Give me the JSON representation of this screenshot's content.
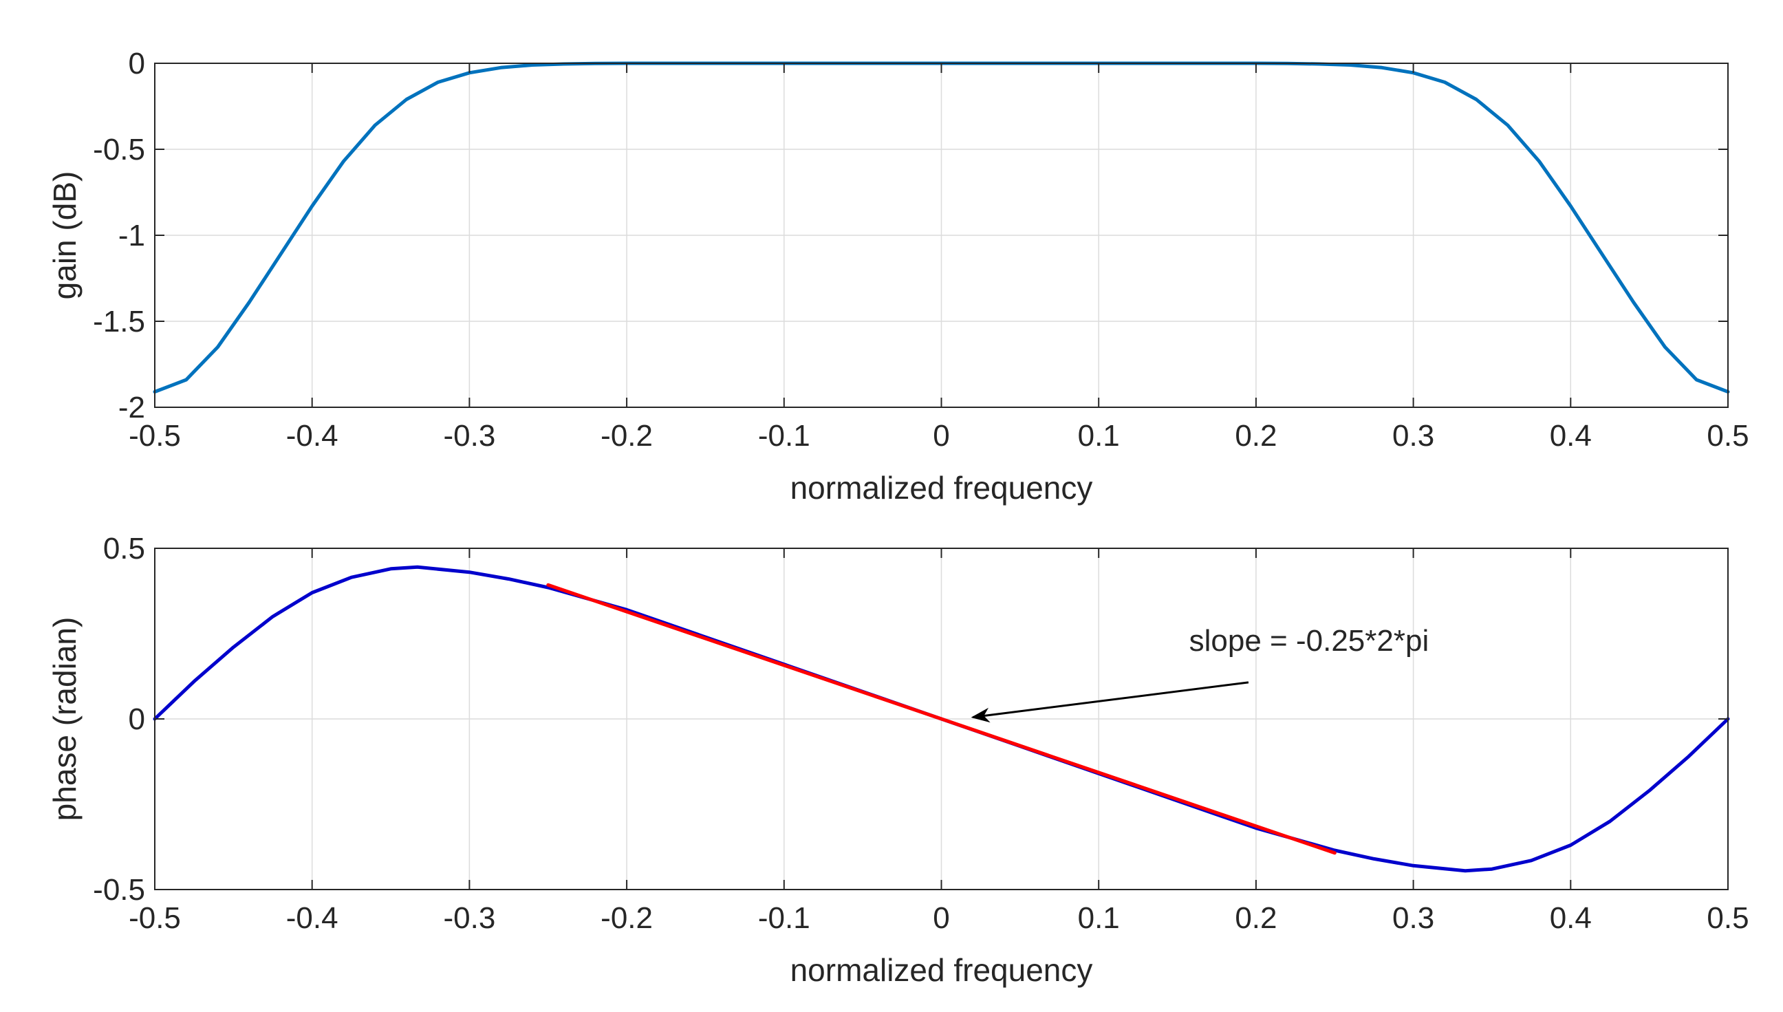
{
  "chart_data": [
    {
      "type": "line",
      "xlabel": "normalized frequency",
      "ylabel": "gain (dB)",
      "xlim": [
        -0.5,
        0.5
      ],
      "ylim": [
        -2,
        0
      ],
      "xticks": [
        "-0.5",
        "-0.4",
        "-0.3",
        "-0.2",
        "-0.1",
        "0",
        "0.1",
        "0.2",
        "0.3",
        "0.4",
        "0.5"
      ],
      "yticks": [
        "0",
        "-0.5",
        "-1",
        "-1.5",
        "-2"
      ],
      "grid": true,
      "series": [
        {
          "name": "gain",
          "color": "#0072BD",
          "x": [
            -0.5,
            -0.48,
            -0.46,
            -0.44,
            -0.42,
            -0.4,
            -0.38,
            -0.36,
            -0.34,
            -0.32,
            -0.3,
            -0.28,
            -0.26,
            -0.24,
            -0.22,
            -0.2,
            -0.1,
            0,
            0.1,
            0.2,
            0.22,
            0.24,
            0.26,
            0.28,
            0.3,
            0.32,
            0.34,
            0.36,
            0.38,
            0.4,
            0.42,
            0.44,
            0.46,
            0.48,
            0.5
          ],
          "y": [
            -1.91,
            -1.84,
            -1.65,
            -1.39,
            -1.11,
            -0.83,
            -0.57,
            -0.36,
            -0.21,
            -0.11,
            -0.055,
            -0.025,
            -0.01,
            -0.004,
            -0.001,
            0,
            0,
            0,
            0,
            0,
            -0.001,
            -0.004,
            -0.01,
            -0.025,
            -0.055,
            -0.11,
            -0.21,
            -0.36,
            -0.57,
            -0.83,
            -1.11,
            -1.39,
            -1.65,
            -1.84,
            -1.91
          ]
        }
      ]
    },
    {
      "type": "line",
      "xlabel": "normalized frequency",
      "ylabel": "phase (radian)",
      "xlim": [
        -0.5,
        0.5
      ],
      "ylim": [
        -0.5,
        0.5
      ],
      "xticks": [
        "-0.5",
        "-0.4",
        "-0.3",
        "-0.2",
        "-0.1",
        "0",
        "0.1",
        "0.2",
        "0.3",
        "0.4",
        "0.5"
      ],
      "yticks": [
        "0.5",
        "0",
        "-0.5"
      ],
      "grid": true,
      "series": [
        {
          "name": "phase",
          "color": "#0000CC",
          "x": [
            -0.5,
            -0.475,
            -0.45,
            -0.425,
            -0.4,
            -0.375,
            -0.35,
            -0.333,
            -0.3,
            -0.275,
            -0.25,
            -0.2,
            -0.15,
            -0.1,
            -0.05,
            0,
            0.05,
            0.1,
            0.15,
            0.2,
            0.25,
            0.275,
            0.3,
            0.333,
            0.35,
            0.375,
            0.4,
            0.425,
            0.45,
            0.475,
            0.5
          ],
          "y": [
            0,
            0.11,
            0.21,
            0.3,
            0.37,
            0.415,
            0.44,
            0.445,
            0.43,
            0.41,
            0.385,
            0.32,
            0.24,
            0.16,
            0.08,
            0,
            -0.08,
            -0.16,
            -0.24,
            -0.32,
            -0.385,
            -0.41,
            -0.43,
            -0.445,
            -0.44,
            -0.415,
            -0.37,
            -0.3,
            -0.21,
            -0.11,
            0
          ]
        },
        {
          "name": "slope line",
          "color": "#FF0000",
          "x": [
            -0.25,
            0.25
          ],
          "y": [
            0.3927,
            -0.3927
          ]
        }
      ],
      "annotations": [
        {
          "text": "slope = -0.25*2*pi",
          "x": 0.12,
          "y": 0.22,
          "arrow_to": [
            0.02,
            0.005
          ]
        }
      ]
    }
  ]
}
